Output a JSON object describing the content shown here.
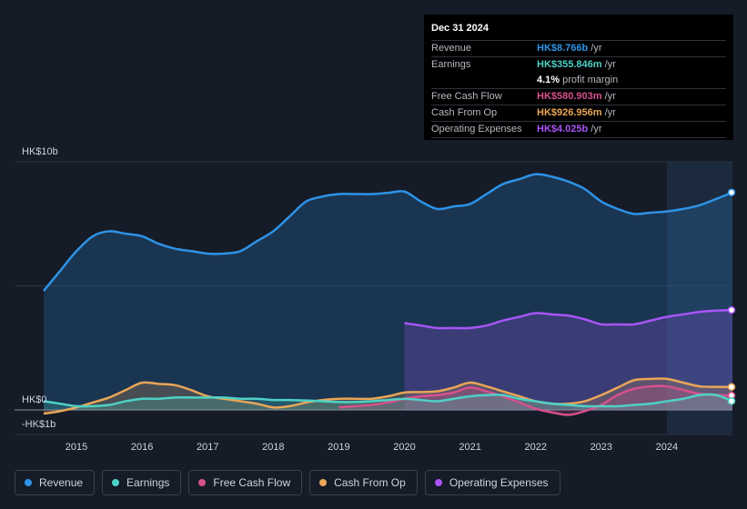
{
  "chart_data": {
    "type": "area",
    "title": "",
    "y_label_top": "HK$10b",
    "y_label_zero": "HK$0",
    "y_label_bottom": "-HK$1b",
    "ylim": [
      -1,
      10
    ],
    "xlim": [
      2014.5,
      2025.0
    ],
    "x_ticks": [
      "2015",
      "2016",
      "2017",
      "2018",
      "2019",
      "2020",
      "2021",
      "2022",
      "2023",
      "2024"
    ],
    "x_tick_values": [
      2015,
      2016,
      2017,
      2018,
      2019,
      2020,
      2021,
      2022,
      2023,
      2024
    ],
    "highlight_from": 2024.0,
    "series": [
      {
        "name": "Revenue",
        "color": "#2e93e6",
        "fill": true,
        "x": [
          2014.5,
          2014.75,
          2015.0,
          2015.25,
          2015.5,
          2015.75,
          2016.0,
          2016.25,
          2016.5,
          2016.75,
          2017.0,
          2017.25,
          2017.5,
          2017.75,
          2018.0,
          2018.25,
          2018.5,
          2018.75,
          2019.0,
          2019.25,
          2019.5,
          2019.75,
          2020.0,
          2020.25,
          2020.5,
          2020.75,
          2021.0,
          2021.25,
          2021.5,
          2021.75,
          2022.0,
          2022.25,
          2022.5,
          2022.75,
          2023.0,
          2023.25,
          2023.5,
          2023.75,
          2024.0,
          2024.25,
          2024.5,
          2024.75,
          2025.0
        ],
        "values": [
          4.8,
          5.6,
          6.4,
          7.0,
          7.2,
          7.1,
          7.0,
          6.7,
          6.5,
          6.4,
          6.3,
          6.3,
          6.4,
          6.8,
          7.2,
          7.8,
          8.4,
          8.6,
          8.7,
          8.7,
          8.7,
          8.75,
          8.8,
          8.4,
          8.1,
          8.2,
          8.3,
          8.7,
          9.1,
          9.3,
          9.5,
          9.4,
          9.2,
          8.9,
          8.4,
          8.1,
          7.9,
          7.95,
          8.0,
          8.1,
          8.25,
          8.5,
          8.766
        ]
      },
      {
        "name": "Operating Expenses",
        "color": "#a855f7",
        "fill": true,
        "x": [
          2020.0,
          2020.25,
          2020.5,
          2020.75,
          2021.0,
          2021.25,
          2021.5,
          2021.75,
          2022.0,
          2022.25,
          2022.5,
          2022.75,
          2023.0,
          2023.25,
          2023.5,
          2023.75,
          2024.0,
          2024.25,
          2024.5,
          2024.75,
          2025.0
        ],
        "values": [
          3.5,
          3.4,
          3.3,
          3.3,
          3.3,
          3.4,
          3.6,
          3.75,
          3.9,
          3.85,
          3.8,
          3.65,
          3.45,
          3.45,
          3.45,
          3.6,
          3.75,
          3.85,
          3.95,
          4.0,
          4.025
        ]
      },
      {
        "name": "Cash From Op",
        "color": "#e9a657",
        "fill": true,
        "x": [
          2014.5,
          2014.75,
          2015.0,
          2015.25,
          2015.5,
          2015.75,
          2016.0,
          2016.25,
          2016.5,
          2016.75,
          2017.0,
          2017.25,
          2017.5,
          2017.75,
          2018.0,
          2018.25,
          2018.5,
          2018.75,
          2019.0,
          2019.25,
          2019.5,
          2019.75,
          2020.0,
          2020.25,
          2020.5,
          2020.75,
          2021.0,
          2021.25,
          2021.5,
          2021.75,
          2022.0,
          2022.25,
          2022.5,
          2022.75,
          2023.0,
          2023.25,
          2023.5,
          2023.75,
          2024.0,
          2024.25,
          2024.5,
          2024.75,
          2025.0
        ],
        "values": [
          -0.15,
          -0.05,
          0.1,
          0.3,
          0.5,
          0.8,
          1.1,
          1.05,
          1.0,
          0.8,
          0.55,
          0.45,
          0.35,
          0.25,
          0.1,
          0.15,
          0.3,
          0.4,
          0.45,
          0.45,
          0.45,
          0.55,
          0.7,
          0.72,
          0.75,
          0.9,
          1.1,
          0.95,
          0.75,
          0.55,
          0.35,
          0.25,
          0.25,
          0.35,
          0.6,
          0.9,
          1.2,
          1.25,
          1.25,
          1.1,
          0.95,
          0.93,
          0.927
        ]
      },
      {
        "name": "Free Cash Flow",
        "color": "#d6518c",
        "fill": true,
        "x": [
          2019.0,
          2019.25,
          2019.5,
          2019.75,
          2020.0,
          2020.25,
          2020.5,
          2020.75,
          2021.0,
          2021.25,
          2021.5,
          2021.75,
          2022.0,
          2022.25,
          2022.5,
          2022.75,
          2023.0,
          2023.25,
          2023.5,
          2023.75,
          2024.0,
          2024.25,
          2024.5,
          2024.75,
          2025.0
        ],
        "values": [
          0.1,
          0.15,
          0.2,
          0.3,
          0.45,
          0.55,
          0.6,
          0.7,
          0.9,
          0.75,
          0.55,
          0.3,
          0.05,
          -0.1,
          -0.2,
          -0.05,
          0.2,
          0.6,
          0.85,
          0.95,
          0.95,
          0.8,
          0.65,
          0.6,
          0.581
        ]
      },
      {
        "name": "Earnings",
        "color": "#4fd1c5",
        "fill": true,
        "x": [
          2014.5,
          2014.75,
          2015.0,
          2015.25,
          2015.5,
          2015.75,
          2016.0,
          2016.25,
          2016.5,
          2016.75,
          2017.0,
          2017.25,
          2017.5,
          2017.75,
          2018.0,
          2018.25,
          2018.5,
          2018.75,
          2019.0,
          2019.25,
          2019.5,
          2019.75,
          2020.0,
          2020.25,
          2020.5,
          2020.75,
          2021.0,
          2021.25,
          2021.5,
          2021.75,
          2022.0,
          2022.25,
          2022.5,
          2022.75,
          2023.0,
          2023.25,
          2023.5,
          2023.75,
          2024.0,
          2024.25,
          2024.5,
          2024.75,
          2025.0
        ],
        "values": [
          0.35,
          0.25,
          0.15,
          0.15,
          0.2,
          0.35,
          0.45,
          0.45,
          0.5,
          0.5,
          0.5,
          0.5,
          0.45,
          0.45,
          0.4,
          0.4,
          0.38,
          0.35,
          0.32,
          0.32,
          0.35,
          0.4,
          0.45,
          0.4,
          0.35,
          0.45,
          0.55,
          0.6,
          0.6,
          0.45,
          0.35,
          0.25,
          0.2,
          0.15,
          0.15,
          0.15,
          0.2,
          0.25,
          0.35,
          0.45,
          0.6,
          0.6,
          0.356
        ]
      }
    ]
  },
  "tooltip": {
    "date": "Dec 31 2024",
    "rows": [
      {
        "label": "Revenue",
        "value": "HK$8.766b",
        "unit": "/yr",
        "color": "#2e93e6"
      },
      {
        "label": "Earnings",
        "value": "HK$355.846m",
        "unit": "/yr",
        "color": "#4fd1c5"
      },
      {
        "label": "Free Cash Flow",
        "value": "HK$580.903m",
        "unit": "/yr",
        "color": "#d6518c"
      },
      {
        "label": "Cash From Op",
        "value": "HK$926.956m",
        "unit": "/yr",
        "color": "#e9a657"
      },
      {
        "label": "Operating Expenses",
        "value": "HK$4.025b",
        "unit": "/yr",
        "color": "#a855f7"
      }
    ],
    "margin_pct": "4.1%",
    "margin_text": "profit margin"
  },
  "legend": [
    {
      "label": "Revenue",
      "color": "#2e93e6"
    },
    {
      "label": "Earnings",
      "color": "#4fd1c5"
    },
    {
      "label": "Free Cash Flow",
      "color": "#d6518c"
    },
    {
      "label": "Cash From Op",
      "color": "#e9a657"
    },
    {
      "label": "Operating Expenses",
      "color": "#a855f7"
    }
  ]
}
